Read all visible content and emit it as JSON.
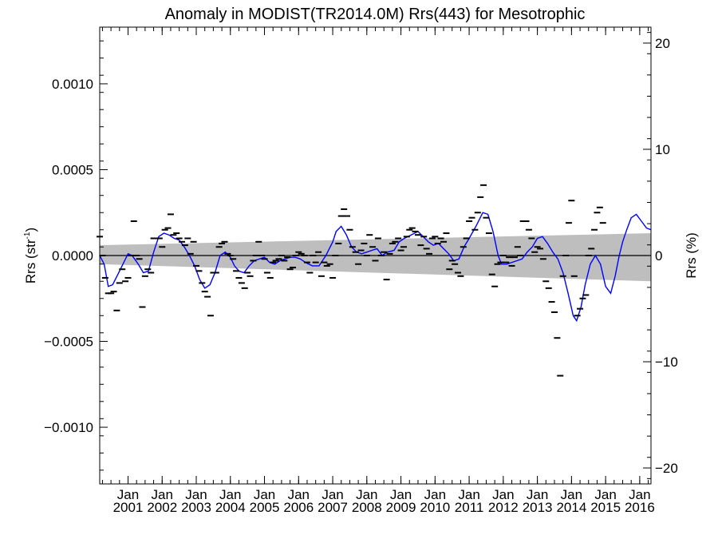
{
  "chart_data": {
    "type": "line",
    "title": "Anomaly in MODIST(TR2014.0M) Rrs(443) for Mesotrophic",
    "ylabel_left_main": "Rrs (str",
    "ylabel_left_sup": "-1",
    "ylabel_left_end": ")",
    "ylabel_right": "Rrs (%)",
    "xlabel": "",
    "x_range": [
      2000.17,
      2016.33
    ],
    "ylim_left": [
      -0.00133,
      0.00133
    ],
    "ylim_right": [
      -21.5,
      21.5
    ],
    "left_ticks": [
      {
        "value": 0.001,
        "label": "0.0010"
      },
      {
        "value": 0.0005,
        "label": "0.0005"
      },
      {
        "value": 0.0,
        "label": "0.0000"
      },
      {
        "value": -0.0005,
        "label": "−0.0005"
      },
      {
        "value": -0.001,
        "label": "−0.0010"
      }
    ],
    "right_ticks": [
      {
        "value": 20,
        "label": "20"
      },
      {
        "value": 10,
        "label": "10"
      },
      {
        "value": 0,
        "label": "0"
      },
      {
        "value": -10,
        "label": "−10"
      },
      {
        "value": -20,
        "label": "−20"
      }
    ],
    "x_ticks": [
      {
        "value": 2001,
        "label_top": "Jan",
        "label_bottom": "2001"
      },
      {
        "value": 2002,
        "label_top": "Jan",
        "label_bottom": "2002"
      },
      {
        "value": 2003,
        "label_top": "Jan",
        "label_bottom": "2003"
      },
      {
        "value": 2004,
        "label_top": "Jan",
        "label_bottom": "2004"
      },
      {
        "value": 2005,
        "label_top": "Jan",
        "label_bottom": "2005"
      },
      {
        "value": 2006,
        "label_top": "Jan",
        "label_bottom": "2006"
      },
      {
        "value": 2007,
        "label_top": "Jan",
        "label_bottom": "2007"
      },
      {
        "value": 2008,
        "label_top": "Jan",
        "label_bottom": "2008"
      },
      {
        "value": 2009,
        "label_top": "Jan",
        "label_bottom": "2009"
      },
      {
        "value": 2010,
        "label_top": "Jan",
        "label_bottom": "2010"
      },
      {
        "value": 2011,
        "label_top": "Jan",
        "label_bottom": "2011"
      },
      {
        "value": 2012,
        "label_top": "Jan",
        "label_bottom": "2012"
      },
      {
        "value": 2013,
        "label_top": "Jan",
        "label_bottom": "2013"
      },
      {
        "value": 2014,
        "label_top": "Jan",
        "label_bottom": "2014"
      },
      {
        "value": 2015,
        "label_top": "Jan",
        "label_bottom": "2015"
      },
      {
        "value": 2016,
        "label_top": "Jan",
        "label_bottom": "2016"
      }
    ],
    "band": {
      "x": [
        2000.17,
        2016.33
      ],
      "upper": [
        6e-05,
        0.00013
      ],
      "lower": [
        -5e-05,
        -0.00015
      ],
      "color": "#bebebe"
    },
    "zero_line": true,
    "smoothed": {
      "color": "#0000ff",
      "x": [
        2000.17,
        2000.3,
        2000.42,
        2000.55,
        2000.7,
        2000.85,
        2001.0,
        2001.12,
        2001.3,
        2001.45,
        2001.6,
        2001.75,
        2001.9,
        2002.05,
        2002.2,
        2002.35,
        2002.5,
        2002.65,
        2002.8,
        2002.95,
        2003.1,
        2003.25,
        2003.4,
        2003.55,
        2003.7,
        2003.85,
        2004.0,
        2004.12,
        2004.25,
        2004.4,
        2004.55,
        2004.7,
        2004.85,
        2005.0,
        2005.15,
        2005.3,
        2005.45,
        2005.6,
        2005.75,
        2005.9,
        2006.05,
        2006.2,
        2006.4,
        2006.6,
        2006.8,
        2007.0,
        2007.1,
        2007.25,
        2007.4,
        2007.55,
        2007.7,
        2007.85,
        2008.0,
        2008.15,
        2008.3,
        2008.45,
        2008.6,
        2008.8,
        2008.95,
        2009.1,
        2009.3,
        2009.5,
        2009.65,
        2009.8,
        2009.95,
        2010.1,
        2010.25,
        2010.4,
        2010.55,
        2010.7,
        2010.85,
        2011.0,
        2011.2,
        2011.4,
        2011.55,
        2011.7,
        2011.85,
        2011.95,
        2012.1,
        2012.25,
        2012.4,
        2012.55,
        2012.7,
        2012.85,
        2013.0,
        2013.15,
        2013.3,
        2013.45,
        2013.6,
        2013.75,
        2013.9,
        2014.05,
        2014.15,
        2014.28,
        2014.4,
        2014.55,
        2014.7,
        2014.85,
        2015.0,
        2015.15,
        2015.28,
        2015.4,
        2015.5,
        2015.62,
        2015.75,
        2015.9,
        2016.05,
        2016.2,
        2016.33
      ],
      "y": [
        0.0,
        -5e-05,
        -0.00018,
        -0.00017,
        -0.00011,
        -5e-05,
        1e-05,
        0.0,
        -5e-05,
        -0.0001,
        -9e-05,
        2e-05,
        0.00011,
        0.00013,
        0.00012,
        0.0001,
        9e-05,
        5e-05,
        0.0,
        -6e-05,
        -0.00014,
        -0.00019,
        -0.00017,
        -0.0001,
        0.0,
        2e-05,
        -1e-05,
        -6e-05,
        -9e-05,
        -0.0001,
        -6e-05,
        -3e-05,
        -2e-05,
        -1e-05,
        -4e-05,
        -5e-05,
        -3e-05,
        -2e-05,
        -1e-05,
        -1e-05,
        -2e-05,
        -4e-05,
        -6e-05,
        -6e-05,
        0.0,
        8e-05,
        0.00014,
        0.00017,
        0.00012,
        5e-05,
        2e-05,
        1e-05,
        2e-05,
        3e-05,
        4e-05,
        0.0,
        2e-05,
        3e-05,
        8e-05,
        0.0001,
        0.00012,
        0.00014,
        0.00011,
        8e-05,
        6e-05,
        7e-05,
        4e-05,
        1e-05,
        -3e-05,
        -2e-05,
        5e-05,
        0.0001,
        0.00017,
        0.00025,
        0.00024,
        0.00014,
        0.0,
        -5e-05,
        -5e-05,
        -4e-05,
        -3e-05,
        -2e-05,
        2e-05,
        5e-05,
        0.0001,
        0.00011,
        7e-05,
        2e-05,
        -2e-05,
        -0.0001,
        -0.00022,
        -0.00035,
        -0.00038,
        -0.0003,
        -0.00017,
        -5e-05,
        0.0,
        -5e-05,
        -0.00018,
        -0.00022,
        -0.00012,
        0.0,
        8e-05,
        0.00015,
        0.00022,
        0.00024,
        0.0002,
        0.00016,
        0.00015
      ]
    },
    "monthly": {
      "color": "#000000",
      "points": [
        [
          2000.17,
          0.00011
        ],
        [
          2000.25,
          0.0
        ],
        [
          2000.33,
          -0.00013
        ],
        [
          2000.42,
          -0.00022
        ],
        [
          2000.5,
          -0.00022
        ],
        [
          2000.58,
          -0.00021
        ],
        [
          2000.67,
          -0.00032
        ],
        [
          2000.75,
          -0.00016
        ],
        [
          2000.83,
          -8e-05
        ],
        [
          2000.92,
          -0.00015
        ],
        [
          2001.0,
          -0.00013
        ],
        [
          2001.08,
          0.0
        ],
        [
          2001.17,
          0.0002
        ],
        [
          2001.25,
          0.0
        ],
        [
          2001.33,
          -2e-05
        ],
        [
          2001.42,
          -0.0003
        ],
        [
          2001.5,
          -0.00012
        ],
        [
          2001.58,
          -8e-05
        ],
        [
          2001.67,
          -0.0001
        ],
        [
          2001.75,
          0.0001
        ],
        [
          2001.83,
          0.0001
        ],
        [
          2001.92,
          0.0001
        ],
        [
          2002.0,
          5e-05
        ],
        [
          2002.08,
          0.00015
        ],
        [
          2002.17,
          0.00016
        ],
        [
          2002.25,
          0.00024
        ],
        [
          2002.33,
          0.00012
        ],
        [
          2002.42,
          0.00013
        ],
        [
          2002.5,
          0.0001
        ],
        [
          2002.58,
          8e-05
        ],
        [
          2002.67,
          6e-05
        ],
        [
          2002.75,
          0.0001
        ],
        [
          2002.83,
          1e-05
        ],
        [
          2002.92,
          8e-05
        ],
        [
          2003.0,
          -6e-05
        ],
        [
          2003.08,
          -9e-05
        ],
        [
          2003.17,
          -0.00016
        ],
        [
          2003.25,
          -0.00021
        ],
        [
          2003.33,
          -0.00024
        ],
        [
          2003.42,
          -0.00035
        ],
        [
          2003.5,
          -0.0001
        ],
        [
          2003.58,
          -0.0001
        ],
        [
          2003.67,
          5e-05
        ],
        [
          2003.75,
          7e-05
        ],
        [
          2003.83,
          8e-05
        ],
        [
          2003.92,
          1e-05
        ],
        [
          2004.0,
          0.0
        ],
        [
          2004.08,
          -2e-05
        ],
        [
          2004.17,
          -9e-05
        ],
        [
          2004.25,
          -0.00013
        ],
        [
          2004.33,
          -0.00016
        ],
        [
          2004.42,
          -0.00019
        ],
        [
          2004.5,
          -0.0001
        ],
        [
          2004.58,
          -0.00012
        ],
        [
          2004.67,
          -3e-05
        ],
        [
          2004.75,
          0.0
        ],
        [
          2004.83,
          8e-05
        ],
        [
          2004.92,
          0.0
        ],
        [
          2005.0,
          -2e-05
        ],
        [
          2005.08,
          -0.0001
        ],
        [
          2005.17,
          -0.00013
        ],
        [
          2005.25,
          -4e-05
        ],
        [
          2005.33,
          -3e-05
        ],
        [
          2005.42,
          -2e-05
        ],
        [
          2005.5,
          0.0
        ],
        [
          2005.58,
          -3e-05
        ],
        [
          2005.67,
          -1e-05
        ],
        [
          2005.75,
          -8e-05
        ],
        [
          2005.83,
          -7e-05
        ],
        [
          2005.92,
          0.0
        ],
        [
          2006.0,
          2e-05
        ],
        [
          2006.08,
          1e-05
        ],
        [
          2006.17,
          0.0
        ],
        [
          2006.25,
          -4e-05
        ],
        [
          2006.33,
          -0.0001
        ],
        [
          2006.42,
          0.0
        ],
        [
          2006.5,
          -4e-05
        ],
        [
          2006.58,
          2e-05
        ],
        [
          2006.67,
          -0.00012
        ],
        [
          2006.75,
          -4e-05
        ],
        [
          2006.83,
          -6e-05
        ],
        [
          2006.92,
          -5e-05
        ],
        [
          2007.0,
          -0.00013
        ],
        [
          2007.08,
          0.0
        ],
        [
          2007.17,
          7e-05
        ],
        [
          2007.25,
          0.00023
        ],
        [
          2007.33,
          0.00027
        ],
        [
          2007.42,
          0.00023
        ],
        [
          2007.5,
          0.00015
        ],
        [
          2007.58,
          5e-05
        ],
        [
          2007.67,
          2e-05
        ],
        [
          2007.75,
          -5e-05
        ],
        [
          2007.83,
          3e-05
        ],
        [
          2007.92,
          7e-05
        ],
        [
          2008.0,
          0.0
        ],
        [
          2008.08,
          0.00012
        ],
        [
          2008.17,
          5e-05
        ],
        [
          2008.25,
          -3e-05
        ],
        [
          2008.33,
          0.0001
        ],
        [
          2008.42,
          0.0
        ],
        [
          2008.5,
          2e-05
        ],
        [
          2008.58,
          -0.00014
        ],
        [
          2008.67,
          1e-05
        ],
        [
          2008.75,
          7e-05
        ],
        [
          2008.83,
          8e-05
        ],
        [
          2008.92,
          0.0001
        ],
        [
          2009.0,
          3e-05
        ],
        [
          2009.08,
          5e-05
        ],
        [
          2009.17,
          0.00011
        ],
        [
          2009.25,
          0.00015
        ],
        [
          2009.33,
          0.00016
        ],
        [
          2009.42,
          0.00014
        ],
        [
          2009.5,
          0.00012
        ],
        [
          2009.58,
          6e-05
        ],
        [
          2009.67,
          0.00011
        ],
        [
          2009.75,
          4e-05
        ],
        [
          2009.83,
          1e-05
        ],
        [
          2009.92,
          0.0001
        ],
        [
          2010.0,
          0.00011
        ],
        [
          2010.08,
          7e-05
        ],
        [
          2010.17,
          0.0001
        ],
        [
          2010.25,
          8e-05
        ],
        [
          2010.33,
          0.00013
        ],
        [
          2010.42,
          -8e-05
        ],
        [
          2010.5,
          -3e-05
        ],
        [
          2010.58,
          -5e-05
        ],
        [
          2010.67,
          -0.0001
        ],
        [
          2010.75,
          -0.00012
        ],
        [
          2010.83,
          5e-05
        ],
        [
          2010.92,
          0.0001
        ],
        [
          2011.0,
          0.0002
        ],
        [
          2011.08,
          0.00022
        ],
        [
          2011.17,
          0.00015
        ],
        [
          2011.25,
          0.00025
        ],
        [
          2011.33,
          0.00034
        ],
        [
          2011.42,
          0.00041
        ],
        [
          2011.5,
          0.00022
        ],
        [
          2011.58,
          0.00013
        ],
        [
          2011.67,
          -0.00011
        ],
        [
          2011.75,
          -0.00018
        ],
        [
          2011.83,
          -5e-05
        ],
        [
          2011.92,
          -4e-05
        ],
        [
          2012.0,
          0.0
        ],
        [
          2012.08,
          -4e-05
        ],
        [
          2012.17,
          -1e-05
        ],
        [
          2012.25,
          -6e-05
        ],
        [
          2012.33,
          -1e-05
        ],
        [
          2012.42,
          5e-05
        ],
        [
          2012.5,
          0.0
        ],
        [
          2012.58,
          0.0002
        ],
        [
          2012.67,
          0.0002
        ],
        [
          2012.75,
          0.00015
        ],
        [
          2012.83,
          0.0001
        ],
        [
          2012.92,
          2e-05
        ],
        [
          2013.0,
          5e-05
        ],
        [
          2013.08,
          4e-05
        ],
        [
          2013.17,
          -2e-05
        ],
        [
          2013.25,
          -0.00015
        ],
        [
          2013.33,
          -0.00019
        ],
        [
          2013.42,
          -0.00027
        ],
        [
          2013.5,
          -0.00033
        ],
        [
          2013.58,
          -0.00048
        ],
        [
          2013.67,
          -0.0007
        ],
        [
          2013.75,
          -0.00012
        ],
        [
          2013.83,
          0.0
        ],
        [
          2013.92,
          0.00019
        ],
        [
          2014.0,
          0.00032
        ],
        [
          2014.08,
          -0.00012
        ],
        [
          2014.17,
          -0.00035
        ],
        [
          2014.25,
          -0.00031
        ],
        [
          2014.33,
          -0.00025
        ],
        [
          2014.42,
          -0.00023
        ],
        [
          2014.5,
          0.0
        ],
        [
          2014.58,
          4e-05
        ],
        [
          2014.67,
          0.00015
        ],
        [
          2014.75,
          0.00025
        ],
        [
          2014.83,
          0.00028
        ],
        [
          2014.92,
          0.00019
        ]
      ]
    }
  }
}
